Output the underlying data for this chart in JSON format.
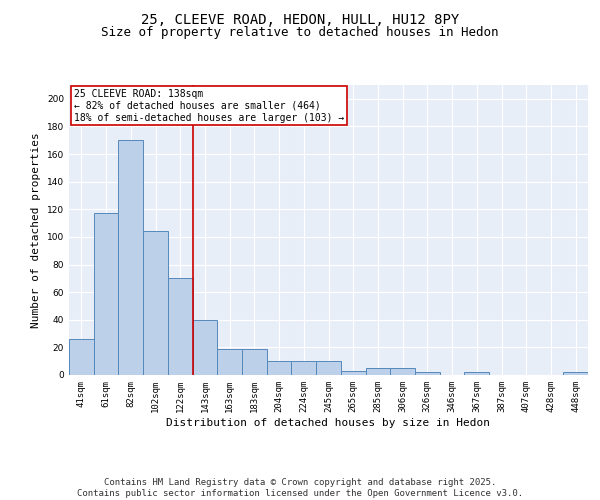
{
  "title1": "25, CLEEVE ROAD, HEDON, HULL, HU12 8PY",
  "title2": "Size of property relative to detached houses in Hedon",
  "xlabel": "Distribution of detached houses by size in Hedon",
  "ylabel": "Number of detached properties",
  "categories": [
    "41sqm",
    "61sqm",
    "82sqm",
    "102sqm",
    "122sqm",
    "143sqm",
    "163sqm",
    "183sqm",
    "204sqm",
    "224sqm",
    "245sqm",
    "265sqm",
    "285sqm",
    "306sqm",
    "326sqm",
    "346sqm",
    "367sqm",
    "387sqm",
    "407sqm",
    "428sqm",
    "448sqm"
  ],
  "values": [
    26,
    117,
    170,
    104,
    70,
    40,
    19,
    19,
    10,
    10,
    10,
    3,
    5,
    5,
    2,
    0,
    2,
    0,
    0,
    0,
    2
  ],
  "bar_color": "#bdd0ea",
  "bar_edge_color": "#5588bb",
  "vline_x": 4.5,
  "vline_color": "#cc0000",
  "annotation_text": "25 CLEEVE ROAD: 138sqm\n← 82% of detached houses are smaller (464)\n18% of semi-detached houses are larger (103) →",
  "annotation_box_color": "#ffffff",
  "annotation_box_edge": "#cc0000",
  "ylim": [
    0,
    210
  ],
  "yticks": [
    0,
    20,
    40,
    60,
    80,
    100,
    120,
    140,
    160,
    180,
    200
  ],
  "background_color": "#e8eef8",
  "grid_color": "#ffffff",
  "footer": "Contains HM Land Registry data © Crown copyright and database right 2025.\nContains public sector information licensed under the Open Government Licence v3.0.",
  "title_fontsize": 10,
  "subtitle_fontsize": 9,
  "axis_label_fontsize": 8,
  "tick_fontsize": 6.5,
  "footer_fontsize": 6.5
}
